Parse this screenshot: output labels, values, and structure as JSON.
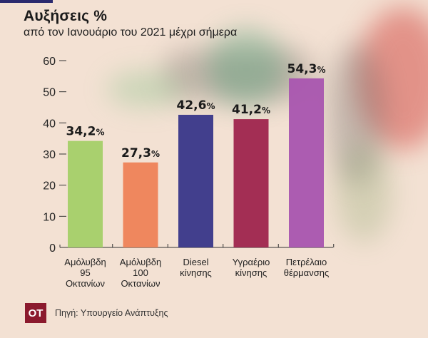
{
  "header": {
    "title": "Αυξήσεις %",
    "subtitle": "από τον Ιανουάριο του 2021 μέχρι σήμερα"
  },
  "footer": {
    "logo": "OT",
    "source": "Πηγή: Υπουργείο Ανάπτυξης"
  },
  "colors": {
    "accent_bar": "#2b2a6e",
    "logo_bg": "#8b1a2e",
    "background": "#f3e1d3"
  },
  "chart_data": {
    "type": "bar",
    "title": "Αυξήσεις %",
    "subtitle": "από τον Ιανουάριο του 2021 μέχρι σήμερα",
    "xlabel": "",
    "ylabel": "",
    "ylim": [
      0,
      60
    ],
    "yticks": [
      0,
      10,
      20,
      30,
      40,
      50,
      60
    ],
    "grid": false,
    "categories": [
      [
        "Αμόλυβδη",
        "95",
        "Οκτανίων"
      ],
      [
        "Αμόλυβδη",
        "100",
        "Οκτανίων"
      ],
      [
        "Diesel",
        "κίνησης"
      ],
      [
        "Υγραέριο",
        "κίνησης"
      ],
      [
        "Πετρέλαιο",
        "θέρμανσης"
      ]
    ],
    "values": [
      34.2,
      27.3,
      42.6,
      41.2,
      54.3
    ],
    "data_labels": [
      "34,2",
      "27,3",
      "42,6",
      "41,2",
      "54,3"
    ],
    "label_suffix": "%",
    "bar_colors": [
      "#a6cf6a",
      "#ee845a",
      "#3c3a8a",
      "#a0284f",
      "#a958b0"
    ]
  }
}
